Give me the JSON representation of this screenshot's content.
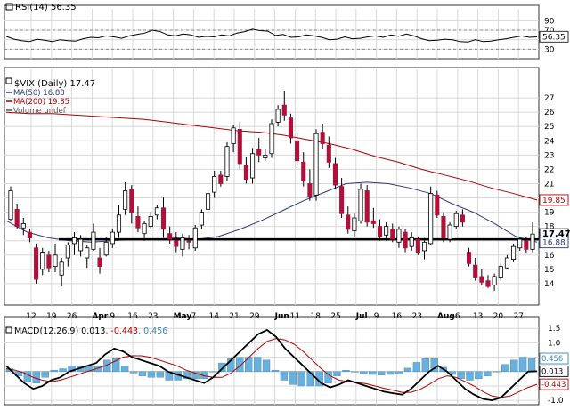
{
  "chart_data": [
    {
      "type": "line",
      "panel": "rsi",
      "title": "RSI(14) 56.35",
      "ylim": [
        10,
        100
      ],
      "y_ticks": [
        "90",
        "70",
        "50",
        "30"
      ],
      "reference_lines": [
        30,
        70
      ],
      "value_label": "56.35",
      "colors": {
        "line": "#000000",
        "reference": "#888888"
      },
      "series": [
        {
          "values": [
            57,
            51,
            48,
            46,
            51,
            49,
            46,
            50,
            48,
            47,
            52,
            55,
            54,
            58,
            56,
            53,
            58,
            61,
            64,
            70,
            67,
            60,
            58,
            62,
            60,
            55,
            57,
            56,
            60,
            58,
            64,
            67,
            72,
            69,
            68,
            59,
            61,
            55,
            56,
            60,
            58,
            55,
            50,
            51,
            56,
            52,
            53,
            56,
            58,
            55,
            60,
            57,
            62,
            58,
            52,
            48,
            49,
            51,
            50,
            46,
            45,
            50,
            46,
            47,
            50,
            52,
            55,
            58,
            55,
            56
          ]
        }
      ]
    },
    {
      "type": "candlestick",
      "panel": "price",
      "title": "$VIX (Daily) 17.47",
      "ylim": [
        12.5,
        28.5
      ],
      "y_ticks": [
        "27",
        "26",
        "25",
        "24",
        "23",
        "22",
        "21",
        "20",
        "19",
        "18",
        "17",
        "16",
        "15",
        "14"
      ],
      "x_tick_labels": [
        "12",
        "19",
        "26",
        "Apr",
        "9",
        "16",
        "23",
        "May",
        "7",
        "14",
        "21",
        "29",
        "Jun",
        "11",
        "18",
        "25",
        "Jul",
        "9",
        "16",
        "23",
        "Aug",
        "6",
        "13",
        "20",
        "27"
      ],
      "legend": [
        {
          "label": "$VIX (Daily) 17.47",
          "color": "#000000"
        },
        {
          "label": "MA(50) 16.88",
          "color": "#2b3a7a"
        },
        {
          "label": "MA(200) 19.85",
          "color": "#b00000"
        },
        {
          "label": "Volume undef",
          "color": "#555555"
        }
      ],
      "price_tags": [
        {
          "value": "17.47",
          "color": "#000000",
          "bold": true
        },
        {
          "value": "19.85",
          "color": "#b00000",
          "bold": false
        },
        {
          "value": "16.88",
          "color": "#2b3a7a",
          "bold": false
        }
      ],
      "horizontal_line": 17.1,
      "colors": {
        "up": "#ffffff",
        "down": "#b0103a",
        "wick": "#000000",
        "ma50": "#2b3a7a",
        "ma200": "#b00000"
      },
      "series": [
        {
          "name": "$VIX",
          "ohlc": [
            [
              18.5,
              20.8,
              18.4,
              20.5
            ],
            [
              19.2,
              19.6,
              17.8,
              18.0
            ],
            [
              17.9,
              18.6,
              17.4,
              18.2
            ],
            [
              17.6,
              17.8,
              16.9,
              17.2
            ],
            [
              16.5,
              16.8,
              14.0,
              14.3
            ],
            [
              15.0,
              16.5,
              14.6,
              16.2
            ],
            [
              16.0,
              16.3,
              14.8,
              15.1
            ],
            [
              15.2,
              16.8,
              14.8,
              16.0
            ],
            [
              14.6,
              15.8,
              13.8,
              15.5
            ],
            [
              15.8,
              16.9,
              15.2,
              16.7
            ],
            [
              16.8,
              17.6,
              16.0,
              17.2
            ],
            [
              16.3,
              17.4,
              15.9,
              17.1
            ],
            [
              15.8,
              16.7,
              15.1,
              16.5
            ],
            [
              16.4,
              18.2,
              16.3,
              17.6
            ],
            [
              15.8,
              16.5,
              14.7,
              15.2
            ],
            [
              16.0,
              17.3,
              15.9,
              16.9
            ],
            [
              16.8,
              17.8,
              16.5,
              17.6
            ],
            [
              17.6,
              19.5,
              17.2,
              18.8
            ],
            [
              19.2,
              21.1,
              18.8,
              20.5
            ],
            [
              20.6,
              20.9,
              18.2,
              19.0
            ],
            [
              18.7,
              19.4,
              17.6,
              17.9
            ],
            [
              17.5,
              18.4,
              17.0,
              18.2
            ],
            [
              18.0,
              19.0,
              17.8,
              18.7
            ],
            [
              18.8,
              19.5,
              18.5,
              19.3
            ],
            [
              19.3,
              20.1,
              17.2,
              17.8
            ],
            [
              17.5,
              18.0,
              16.8,
              17.1
            ],
            [
              17.0,
              17.6,
              16.2,
              16.6
            ],
            [
              16.4,
              17.5,
              15.9,
              17.2
            ],
            [
              17.0,
              17.4,
              16.4,
              16.9
            ],
            [
              16.5,
              18.1,
              16.3,
              17.9
            ],
            [
              18.1,
              19.2,
              17.8,
              19.0
            ],
            [
              19.2,
              20.5,
              18.9,
              20.3
            ],
            [
              20.4,
              21.9,
              20.0,
              21.5
            ],
            [
              21.6,
              21.9,
              20.8,
              21.0
            ],
            [
              21.5,
              23.9,
              21.2,
              23.6
            ],
            [
              23.8,
              25.1,
              23.2,
              24.9
            ],
            [
              24.8,
              25.3,
              22.0,
              22.4
            ],
            [
              22.3,
              22.9,
              21.0,
              21.3
            ],
            [
              21.4,
              23.5,
              21.0,
              23.1
            ],
            [
              23.4,
              24.2,
              22.5,
              23.0
            ],
            [
              22.8,
              23.4,
              22.6,
              23.0
            ],
            [
              23.1,
              25.5,
              22.8,
              25.2
            ],
            [
              25.3,
              26.5,
              25.0,
              26.2
            ],
            [
              26.5,
              27.5,
              25.4,
              25.8
            ],
            [
              25.6,
              25.9,
              23.8,
              24.2
            ],
            [
              24.0,
              24.5,
              22.2,
              22.6
            ],
            [
              22.5,
              23.2,
              20.8,
              21.2
            ],
            [
              21.0,
              22.0,
              19.8,
              20.1
            ],
            [
              20.2,
              24.8,
              19.8,
              24.5
            ],
            [
              24.6,
              25.2,
              23.4,
              23.8
            ],
            [
              23.7,
              24.3,
              22.1,
              22.5
            ],
            [
              22.4,
              22.8,
              20.6,
              20.9
            ],
            [
              20.8,
              21.4,
              18.6,
              18.9
            ],
            [
              18.8,
              19.4,
              17.5,
              17.8
            ],
            [
              17.7,
              18.9,
              17.3,
              18.6
            ],
            [
              18.4,
              21.0,
              18.2,
              20.6
            ],
            [
              20.5,
              20.9,
              18.0,
              18.3
            ],
            [
              18.4,
              19.3,
              17.9,
              18.2
            ],
            [
              18.0,
              18.5,
              17.0,
              17.3
            ],
            [
              17.4,
              18.3,
              17.0,
              18.0
            ],
            [
              17.8,
              18.2,
              16.9,
              17.1
            ],
            [
              16.9,
              18.0,
              16.5,
              17.8
            ],
            [
              17.6,
              17.8,
              16.2,
              16.5
            ],
            [
              16.6,
              17.6,
              16.3,
              17.2
            ],
            [
              17.1,
              17.3,
              16.0,
              16.2
            ],
            [
              16.3,
              17.2,
              15.7,
              16.9
            ],
            [
              16.8,
              20.8,
              16.7,
              20.3
            ],
            [
              20.2,
              20.5,
              18.6,
              18.8
            ],
            [
              18.7,
              19.0,
              16.9,
              17.2
            ],
            [
              17.1,
              18.3,
              16.9,
              18.1
            ],
            [
              18.0,
              19.1,
              17.8,
              18.9
            ],
            [
              18.8,
              19.2,
              18.0,
              18.3
            ],
            [
              16.2,
              16.5,
              15.2,
              15.4
            ],
            [
              15.3,
              15.8,
              14.2,
              14.4
            ],
            [
              14.5,
              15.0,
              13.9,
              14.1
            ],
            [
              14.2,
              14.6,
              13.7,
              13.8
            ],
            [
              13.9,
              14.7,
              13.5,
              14.5
            ],
            [
              14.4,
              15.4,
              14.2,
              15.2
            ],
            [
              15.1,
              16.0,
              15.0,
              15.8
            ],
            [
              15.7,
              16.8,
              15.5,
              16.6
            ],
            [
              16.5,
              17.3,
              16.3,
              17.1
            ],
            [
              17.0,
              17.3,
              16.1,
              16.4
            ],
            [
              16.4,
              18.3,
              16.2,
              17.47
            ]
          ]
        },
        {
          "name": "MA(50)",
          "values": [
            18.4,
            17.6,
            17.2,
            17.0,
            16.9,
            17.0,
            17.1,
            17.1,
            17.2,
            17.1,
            17.3,
            17.8,
            18.4,
            19.1,
            19.8,
            20.4,
            21.0,
            21.1,
            21.0,
            20.7,
            20.3,
            19.6,
            19.0,
            18.2,
            17.3,
            16.9
          ]
        },
        {
          "name": "MA(200)",
          "values": [
            26.0,
            25.9,
            25.9,
            25.8,
            25.7,
            25.6,
            25.5,
            25.3,
            25.1,
            24.9,
            24.7,
            24.6,
            24.4,
            24.1,
            23.8,
            23.4,
            22.9,
            22.5,
            22.0,
            21.6,
            21.2,
            20.7,
            20.3,
            19.85
          ]
        }
      ]
    },
    {
      "type": "bar",
      "panel": "macd",
      "title": "MACD(12,26,9) 0.013, -0.443, 0.456",
      "legend": [
        {
          "label": "MACD(12,26,9)",
          "color": "#000000"
        },
        {
          "label": "0.013",
          "color": "#000000"
        },
        {
          "label": "-0.443",
          "color": "#b00000"
        },
        {
          "label": "0.456",
          "color": "#3a87ad"
        }
      ],
      "ylim": [
        -1.15,
        1.6
      ],
      "y_ticks": [
        "1.5",
        "1.0",
        "0.5",
        "-0.5",
        "-1.0"
      ],
      "price_tags": [
        {
          "value": "0.456",
          "color": "#3a87ad"
        },
        {
          "value": "0.013",
          "color": "#000000"
        },
        {
          "value": "-0.443",
          "color": "#b00000"
        }
      ],
      "colors": {
        "macd": "#000000",
        "signal": "#b00000",
        "histogram": "#6ab0de"
      },
      "series": [
        {
          "name": "MACD",
          "values": [
            0.2,
            -0.1,
            -0.4,
            -0.6,
            -0.5,
            -0.3,
            -0.2,
            0.0,
            0.1,
            0.2,
            0.3,
            0.6,
            0.8,
            0.7,
            0.5,
            0.4,
            0.3,
            0.2,
            0.0,
            -0.1,
            -0.2,
            -0.3,
            -0.4,
            -0.2,
            0.1,
            0.4,
            0.7,
            1.0,
            1.3,
            1.45,
            1.2,
            0.8,
            0.5,
            0.2,
            -0.1,
            -0.4,
            -0.55,
            -0.45,
            -0.3,
            -0.4,
            -0.5,
            -0.6,
            -0.7,
            -0.75,
            -0.8,
            -0.6,
            -0.3,
            0.0,
            0.2,
            0.0,
            -0.3,
            -0.6,
            -0.8,
            -0.95,
            -1.0,
            -0.9,
            -0.6,
            -0.3,
            0.0,
            0.013
          ]
        },
        {
          "name": "Signal",
          "values": [
            0.1,
            0.05,
            -0.05,
            -0.2,
            -0.3,
            -0.35,
            -0.3,
            -0.2,
            -0.1,
            0.0,
            0.1,
            0.2,
            0.35,
            0.5,
            0.55,
            0.55,
            0.5,
            0.4,
            0.3,
            0.2,
            0.05,
            -0.05,
            -0.15,
            -0.2,
            -0.2,
            -0.05,
            0.2,
            0.5,
            0.8,
            1.05,
            1.15,
            1.1,
            0.95,
            0.7,
            0.4,
            0.1,
            -0.15,
            -0.3,
            -0.35,
            -0.38,
            -0.42,
            -0.5,
            -0.58,
            -0.65,
            -0.72,
            -0.72,
            -0.62,
            -0.45,
            -0.25,
            -0.15,
            -0.2,
            -0.35,
            -0.5,
            -0.7,
            -0.85,
            -0.9,
            -0.85,
            -0.7,
            -0.55,
            -0.443
          ]
        },
        {
          "name": "Histogram",
          "values": [
            0.1,
            -0.15,
            -0.35,
            -0.4,
            -0.2,
            0.05,
            0.1,
            0.2,
            0.2,
            0.2,
            0.2,
            0.4,
            0.45,
            0.2,
            -0.05,
            -0.15,
            -0.2,
            -0.2,
            -0.3,
            -0.3,
            -0.25,
            -0.25,
            -0.25,
            0.0,
            0.3,
            0.45,
            0.5,
            0.5,
            0.5,
            0.4,
            0.05,
            -0.3,
            -0.45,
            -0.5,
            -0.5,
            -0.5,
            -0.4,
            -0.15,
            0.05,
            -0.02,
            -0.08,
            -0.1,
            -0.12,
            -0.1,
            -0.08,
            0.12,
            0.32,
            0.45,
            0.45,
            0.15,
            -0.1,
            -0.25,
            -0.3,
            -0.25,
            -0.15,
            0.0,
            0.25,
            0.4,
            0.5,
            0.456
          ]
        }
      ]
    }
  ]
}
